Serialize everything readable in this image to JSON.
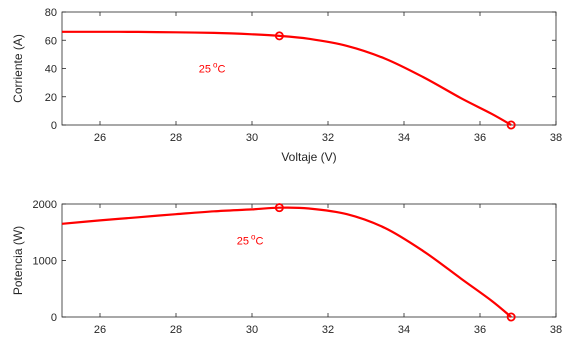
{
  "chart_data": [
    {
      "type": "line",
      "xlabel": "Voltaje (V)",
      "ylabel": "Corriente (A)",
      "xlim": [
        25,
        38
      ],
      "ylim": [
        0,
        80
      ],
      "xticks": [
        26,
        28,
        30,
        32,
        34,
        36,
        38
      ],
      "yticks": [
        0,
        20,
        40,
        60,
        80
      ],
      "annotation": {
        "text": "25",
        "superscript": "o",
        "suffix": "C",
        "x": 28.6,
        "y": 37
      },
      "grid": false,
      "series": [
        {
          "color": "#ff0000",
          "x": [
            25,
            26,
            27,
            28,
            29,
            30,
            30.72,
            31.5,
            32.5,
            33.5,
            34.5,
            35.5,
            36.3,
            36.82
          ],
          "y": [
            66,
            66,
            65.9,
            65.6,
            65.2,
            64.2,
            63.1,
            61,
            56,
            47,
            34,
            19,
            8,
            0
          ]
        }
      ],
      "markers": [
        {
          "x": 30.72,
          "y": 63.1
        },
        {
          "x": 36.82,
          "y": 0
        }
      ]
    },
    {
      "type": "line",
      "xlabel": "",
      "ylabel": "Potencia (W)",
      "xlim": [
        25,
        38
      ],
      "ylim": [
        0,
        2000
      ],
      "xticks": [
        26,
        28,
        30,
        32,
        34,
        36,
        38
      ],
      "yticks": [
        0,
        1000,
        2000
      ],
      "annotation": {
        "text": "25",
        "superscript": "o",
        "suffix": "C",
        "x": 29.6,
        "y": 1280
      },
      "grid": false,
      "series": [
        {
          "color": "#ff0000",
          "x": [
            25,
            26,
            27,
            28,
            29,
            30,
            30.72,
            31.5,
            32.5,
            33.5,
            34.5,
            35.5,
            36.3,
            36.82
          ],
          "y": [
            1650,
            1710,
            1765,
            1820,
            1870,
            1905,
            1935,
            1920,
            1820,
            1575,
            1170,
            680,
            290,
            0
          ]
        }
      ],
      "markers": [
        {
          "x": 30.72,
          "y": 1935
        },
        {
          "x": 36.82,
          "y": 0
        }
      ]
    }
  ]
}
